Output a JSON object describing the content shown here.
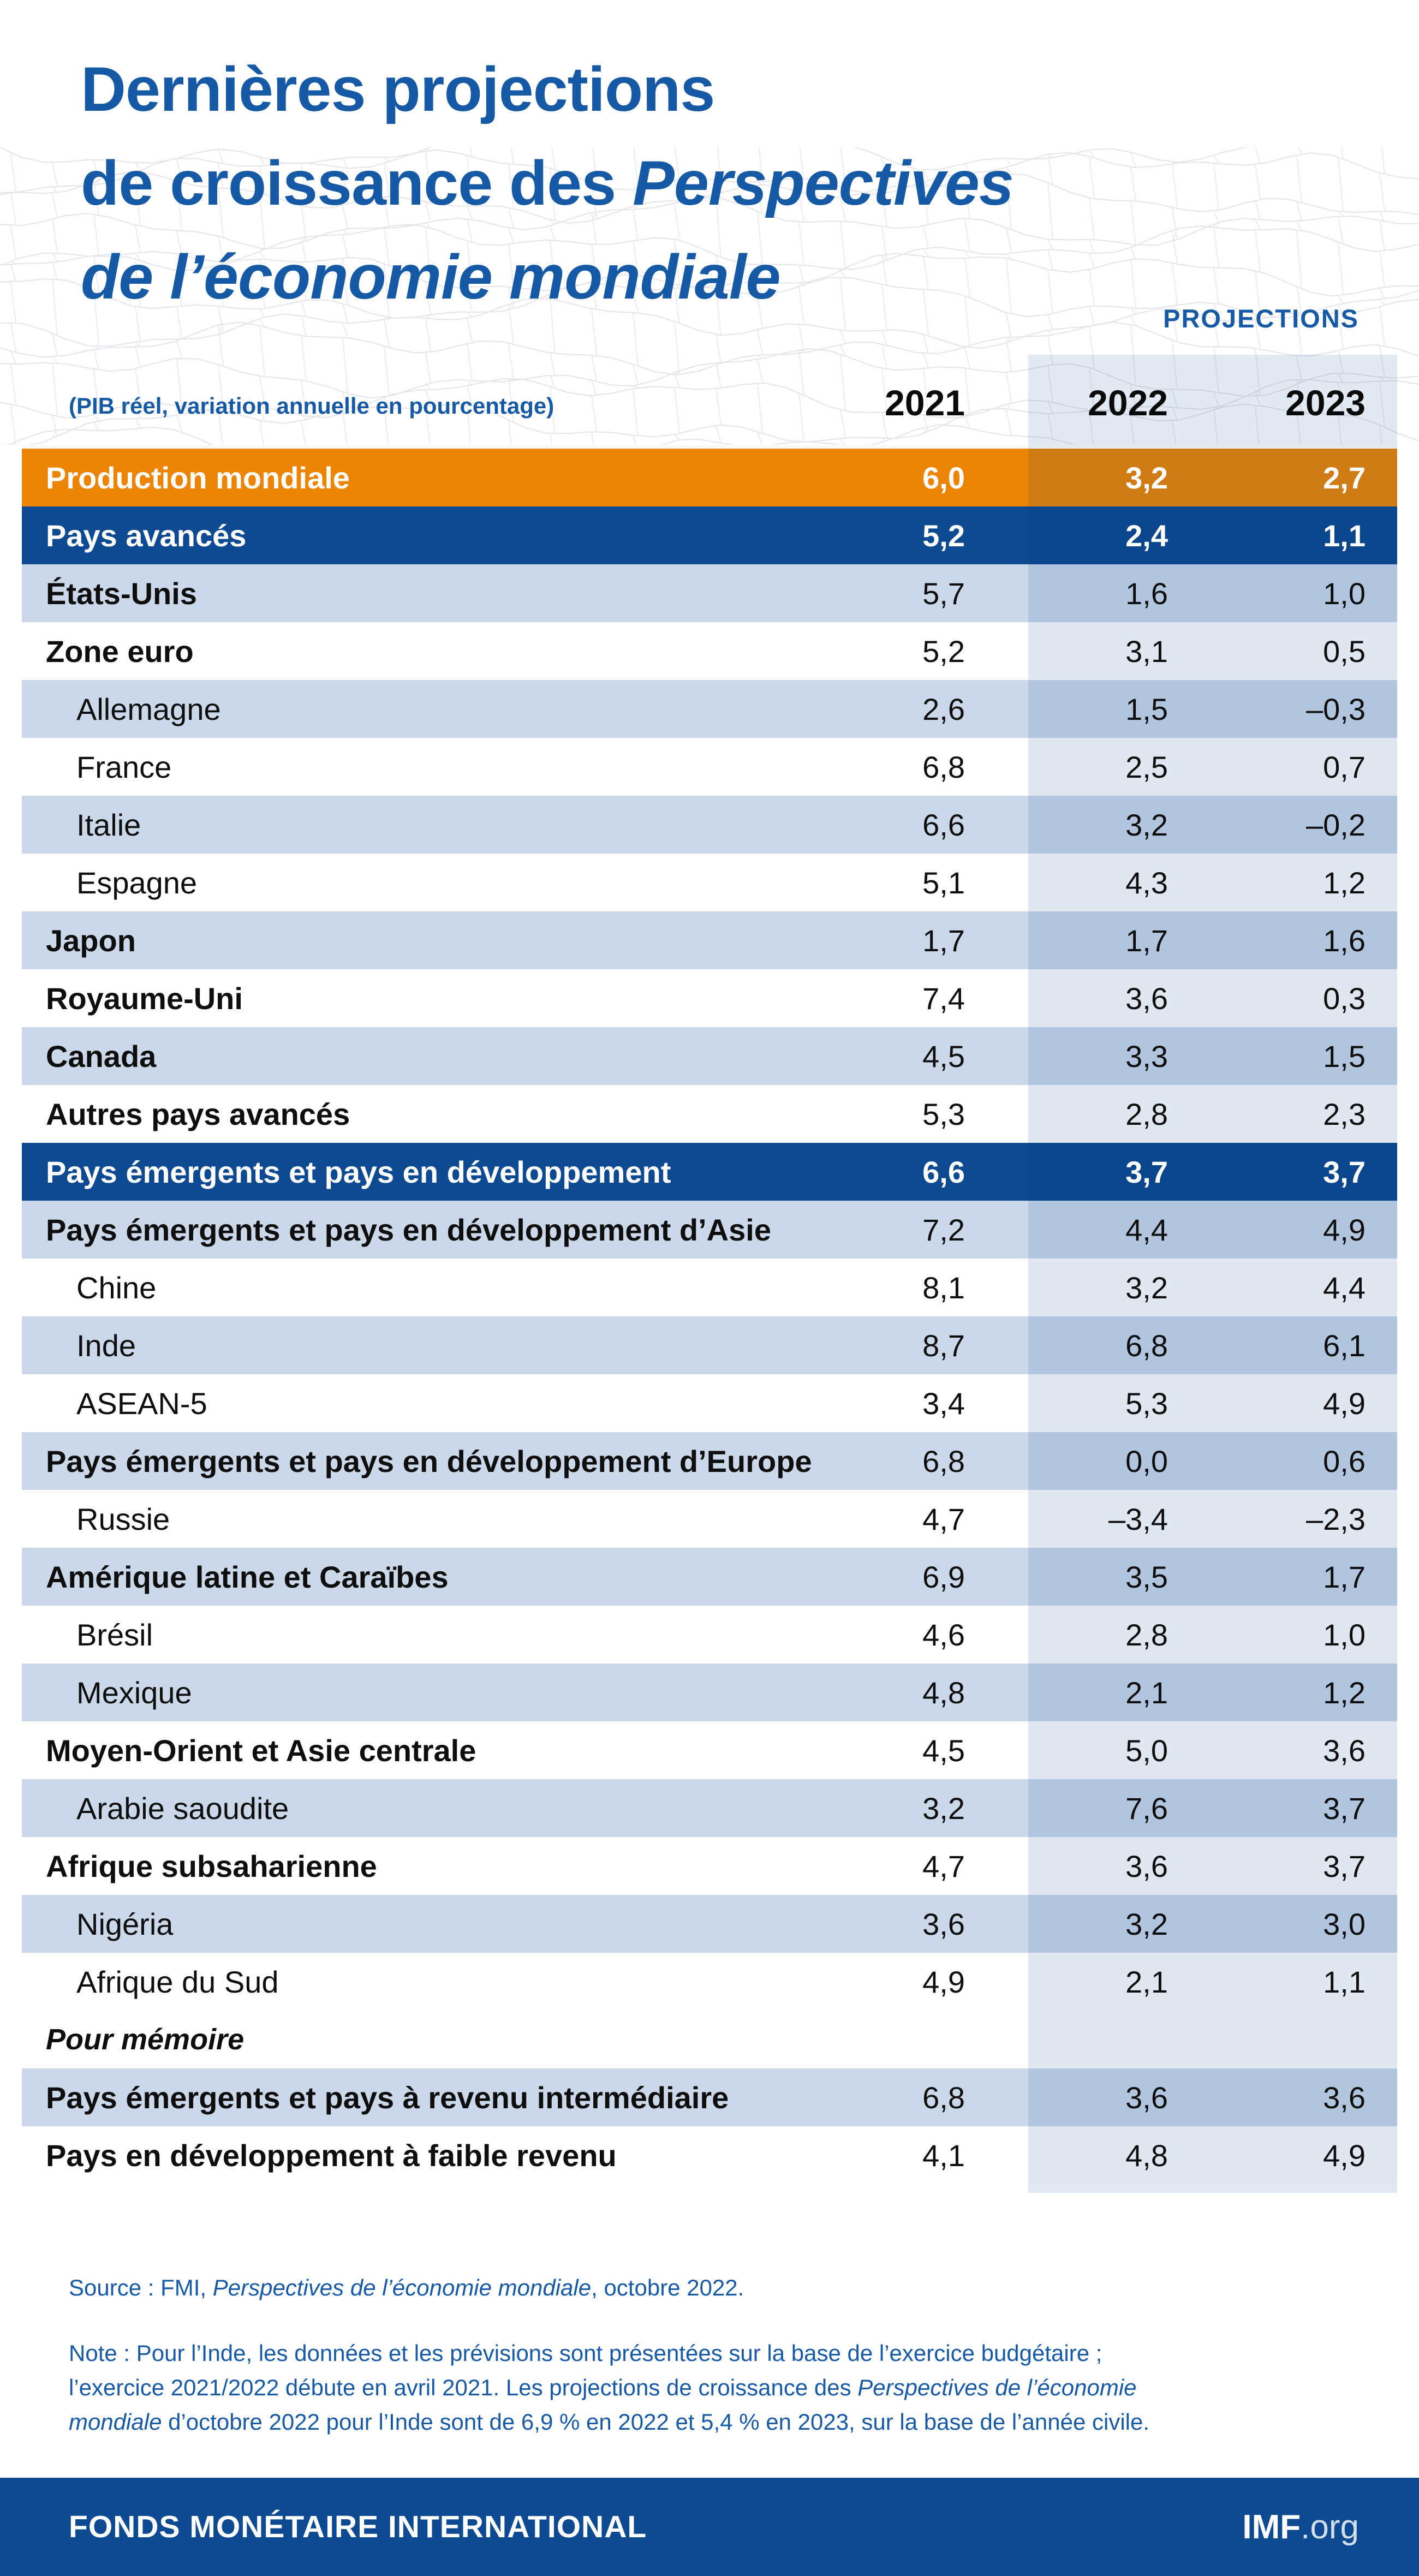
{
  "colors": {
    "blue_text": "#1659A5",
    "navy": "#0D4A92",
    "navy_band": "#0B468C",
    "orange": "#EC8405",
    "orange_band": "#CF7C17",
    "light": "#CBD8E9",
    "light_band": "#B2C5DE",
    "white_band": "#E0E7F1"
  },
  "header": {
    "title_lines": [
      "Dernières projections",
      "de croissance des *Perspectives*",
      "*de l’économie mondiale*"
    ],
    "projections_label": "PROJECTIONS",
    "subtitle": "(PIB réel, variation annuelle en pourcentage)",
    "years": [
      "2021",
      "2022",
      "2023"
    ]
  },
  "chart_data": {
    "type": "table",
    "title": "Dernières projections de croissance des Perspectives de l’économie mondiale",
    "unit": "PIB réel, variation annuelle en pourcentage",
    "columns": [
      "2021",
      "2022",
      "2023"
    ],
    "rows": [
      {
        "label": "Production mondiale",
        "style": "orange",
        "indent": false,
        "bold": true,
        "values": [
          6.0,
          3.2,
          2.7
        ]
      },
      {
        "label": "Pays avancés",
        "style": "navy",
        "indent": false,
        "bold": true,
        "values": [
          5.2,
          2.4,
          1.1
        ]
      },
      {
        "label": "États-Unis",
        "style": "light",
        "indent": false,
        "bold": true,
        "values": [
          5.7,
          1.6,
          1.0
        ]
      },
      {
        "label": "Zone euro",
        "style": "white",
        "indent": false,
        "bold": true,
        "values": [
          5.2,
          3.1,
          0.5
        ]
      },
      {
        "label": "Allemagne",
        "style": "light",
        "indent": true,
        "bold": false,
        "values": [
          2.6,
          1.5,
          -0.3
        ]
      },
      {
        "label": "France",
        "style": "white",
        "indent": true,
        "bold": false,
        "values": [
          6.8,
          2.5,
          0.7
        ]
      },
      {
        "label": "Italie",
        "style": "light",
        "indent": true,
        "bold": false,
        "values": [
          6.6,
          3.2,
          -0.2
        ]
      },
      {
        "label": "Espagne",
        "style": "white",
        "indent": true,
        "bold": false,
        "values": [
          5.1,
          4.3,
          1.2
        ]
      },
      {
        "label": "Japon",
        "style": "light",
        "indent": false,
        "bold": true,
        "values": [
          1.7,
          1.7,
          1.6
        ]
      },
      {
        "label": "Royaume-Uni",
        "style": "white",
        "indent": false,
        "bold": true,
        "values": [
          7.4,
          3.6,
          0.3
        ]
      },
      {
        "label": "Canada",
        "style": "light",
        "indent": false,
        "bold": true,
        "values": [
          4.5,
          3.3,
          1.5
        ]
      },
      {
        "label": "Autres pays avancés",
        "style": "white",
        "indent": false,
        "bold": true,
        "values": [
          5.3,
          2.8,
          2.3
        ]
      },
      {
        "label": "Pays émergents et pays en développement",
        "style": "navy",
        "indent": false,
        "bold": true,
        "values": [
          6.6,
          3.7,
          3.7
        ]
      },
      {
        "label": "Pays émergents et pays en développement d’Asie",
        "style": "light",
        "indent": false,
        "bold": true,
        "values": [
          7.2,
          4.4,
          4.9
        ]
      },
      {
        "label": "Chine",
        "style": "white",
        "indent": true,
        "bold": false,
        "values": [
          8.1,
          3.2,
          4.4
        ]
      },
      {
        "label": "Inde",
        "style": "light",
        "indent": true,
        "bold": false,
        "values": [
          8.7,
          6.8,
          6.1
        ]
      },
      {
        "label": "ASEAN-5",
        "style": "white",
        "indent": true,
        "bold": false,
        "values": [
          3.4,
          5.3,
          4.9
        ]
      },
      {
        "label": "Pays émergents et pays en développement d’Europe",
        "style": "light",
        "indent": false,
        "bold": true,
        "values": [
          6.8,
          0.0,
          0.6
        ]
      },
      {
        "label": "Russie",
        "style": "white",
        "indent": true,
        "bold": false,
        "values": [
          4.7,
          -3.4,
          -2.3
        ]
      },
      {
        "label": "Amérique latine et Caraïbes",
        "style": "light",
        "indent": false,
        "bold": true,
        "values": [
          6.9,
          3.5,
          1.7
        ]
      },
      {
        "label": "Brésil",
        "style": "white",
        "indent": true,
        "bold": false,
        "values": [
          4.6,
          2.8,
          1.0
        ]
      },
      {
        "label": "Mexique",
        "style": "light",
        "indent": true,
        "bold": false,
        "values": [
          4.8,
          2.1,
          1.2
        ]
      },
      {
        "label": "Moyen-Orient et Asie centrale",
        "style": "white",
        "indent": false,
        "bold": true,
        "values": [
          4.5,
          5.0,
          3.6
        ]
      },
      {
        "label": "Arabie saoudite",
        "style": "light",
        "indent": true,
        "bold": false,
        "values": [
          3.2,
          7.6,
          3.7
        ]
      },
      {
        "label": "Afrique subsaharienne",
        "style": "white",
        "indent": false,
        "bold": true,
        "values": [
          4.7,
          3.6,
          3.7
        ]
      },
      {
        "label": "Nigéria",
        "style": "light",
        "indent": true,
        "bold": false,
        "values": [
          3.6,
          3.2,
          3.0
        ]
      },
      {
        "label": "Afrique du Sud",
        "style": "white",
        "indent": true,
        "bold": false,
        "values": [
          4.9,
          2.1,
          1.1
        ]
      },
      {
        "label": "Pour mémoire",
        "style": "memo",
        "indent": false,
        "bold": false,
        "values": []
      },
      {
        "label": "Pays émergents et pays à revenu intermédiaire",
        "style": "light",
        "indent": false,
        "bold": true,
        "values": [
          6.8,
          3.6,
          3.6
        ]
      },
      {
        "label": "Pays en développement à faible revenu",
        "style": "white",
        "indent": false,
        "bold": true,
        "values": [
          4.1,
          4.8,
          4.9
        ]
      }
    ]
  },
  "footer": {
    "source": "Source : FMI, *Perspectives de l’économie mondiale*, octobre 2022.",
    "note_lines": [
      "Note : Pour l’Inde, les données et les prévisions sont présentées sur la base de l’exercice budgétaire ;",
      "l’exercice 2021/2022 débute en avril 2021. Les projections de croissance des *Perspectives de l’économie*",
      "*mondiale* d’octobre 2022 pour l’Inde sont de 6,9 % en 2022 et 5,4 % en 2023, sur la base de l’année civile."
    ],
    "bar": {
      "org_name": "FONDS MONÉTAIRE INTERNATIONAL",
      "site_bold": "IMF",
      "site_suffix": ".org"
    }
  }
}
